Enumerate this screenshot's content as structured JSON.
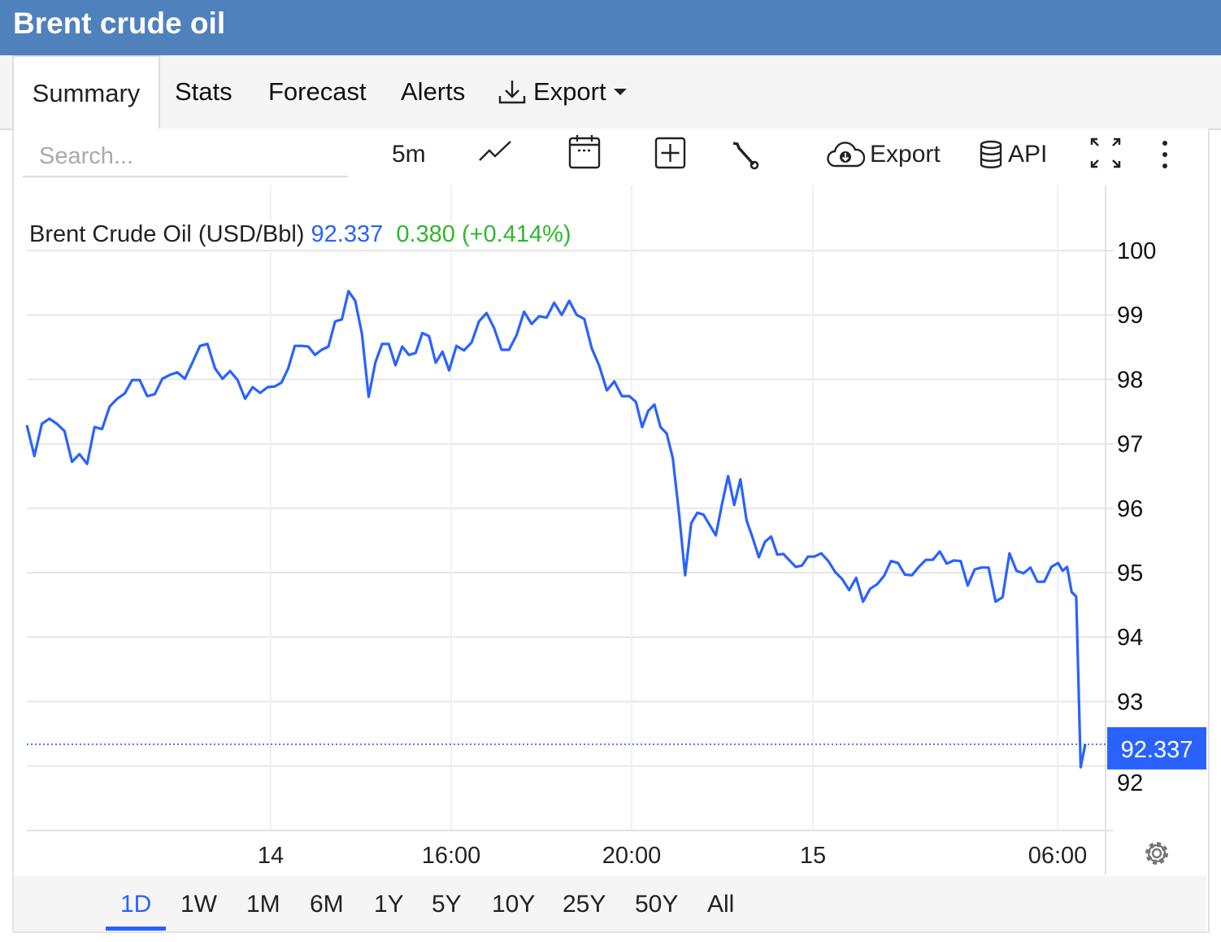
{
  "header": {
    "title": "Brent crude oil"
  },
  "tabs": [
    {
      "label": "Summary",
      "active": true
    },
    {
      "label": "Stats"
    },
    {
      "label": "Forecast"
    },
    {
      "label": "Alerts"
    },
    {
      "label": "Export",
      "icon": "download-icon",
      "dropdown": true
    }
  ],
  "toolbar": {
    "search_placeholder": "Search...",
    "interval": "5m",
    "export_label": "Export",
    "api_label": "API",
    "icons": [
      "line-chart-icon",
      "calendar-icon",
      "add-indicator-icon",
      "wrench-icon",
      "cloud-download-icon",
      "database-icon",
      "fullscreen-icon",
      "more-vertical-icon",
      "gear-icon"
    ]
  },
  "legend": {
    "name": "Brent Crude Oil (USD/Bbl)",
    "price": "92.337",
    "change": "0.380 (+0.414%)"
  },
  "colors": {
    "header": "#4f81bd",
    "line": "#2962ff",
    "price": "#2962ff",
    "change": "#2db82d",
    "grid": "#e6e6e6"
  },
  "ranges": [
    {
      "label": "1D",
      "active": true
    },
    {
      "label": "1W"
    },
    {
      "label": "1M"
    },
    {
      "label": "6M"
    },
    {
      "label": "1Y"
    },
    {
      "label": "5Y"
    },
    {
      "label": "10Y"
    },
    {
      "label": "25Y"
    },
    {
      "label": "50Y"
    },
    {
      "label": "All"
    }
  ],
  "chart_data": {
    "type": "line",
    "series": [
      {
        "name": "Brent Crude Oil (USD/Bbl)",
        "values": [
          97.29,
          96.81,
          97.31,
          97.39,
          97.31,
          97.2,
          96.72,
          96.84,
          96.69,
          97.26,
          97.23,
          97.58,
          97.7,
          97.78,
          97.99,
          97.99,
          97.74,
          97.77,
          98.01,
          98.07,
          98.11,
          98.01,
          98.26,
          98.52,
          98.55,
          98.17,
          98.01,
          98.13,
          97.99,
          97.7,
          97.88,
          97.79,
          97.88,
          97.89,
          97.95,
          98.17,
          98.52,
          98.52,
          98.51,
          98.38,
          98.46,
          98.51,
          98.9,
          98.93,
          99.37,
          99.22,
          98.71,
          97.73,
          98.26,
          98.55,
          98.55,
          98.22,
          98.51,
          98.38,
          98.41,
          98.72,
          98.67,
          98.26,
          98.43,
          98.14,
          98.52,
          98.45,
          98.57,
          98.9,
          99.03,
          98.8,
          98.46,
          98.46,
          98.69,
          99.05,
          98.86,
          98.98,
          98.96,
          99.19,
          99.0,
          99.22,
          99.0,
          98.94,
          98.48,
          98.21,
          97.83,
          97.97,
          97.74,
          97.74,
          97.65,
          97.26,
          97.51,
          97.61,
          97.26,
          97.16,
          96.78,
          95.93,
          94.96,
          95.77,
          95.93,
          95.9,
          95.74,
          95.58,
          96.06,
          96.5,
          96.05,
          96.45,
          95.81,
          95.54,
          95.24,
          95.48,
          95.56,
          95.28,
          95.29,
          95.19,
          95.09,
          95.11,
          95.25,
          95.25,
          95.3,
          95.18,
          95.01,
          94.9,
          94.73,
          94.92,
          94.55,
          94.75,
          94.82,
          94.95,
          95.18,
          95.15,
          94.97,
          94.96,
          95.09,
          95.2,
          95.2,
          95.33,
          95.14,
          95.19,
          95.18,
          94.8,
          95.05,
          95.08,
          95.08,
          94.55,
          94.62,
          95.3,
          95.03,
          94.99,
          95.08,
          94.86,
          94.86,
          95.09,
          95.15,
          95.03,
          95.09,
          94.7,
          94.63,
          91.98,
          92.34
        ]
      }
    ],
    "x_ticks": [
      {
        "label": "14",
        "index": 32.4
      },
      {
        "label": "16:00",
        "index": 59.3
      },
      {
        "label": "20:00",
        "index": 83.3
      },
      {
        "label": "15",
        "index": 112.8
      },
      {
        "label": "06:00",
        "index": 147.9
      }
    ],
    "y_ticks": [
      92,
      93,
      94,
      95,
      96,
      97,
      98,
      99,
      100
    ],
    "ylim": [
      91,
      100.1
    ],
    "y_axis_side": "right",
    "last_value_label": "92.337",
    "last_value": 92.337,
    "grid": true
  }
}
